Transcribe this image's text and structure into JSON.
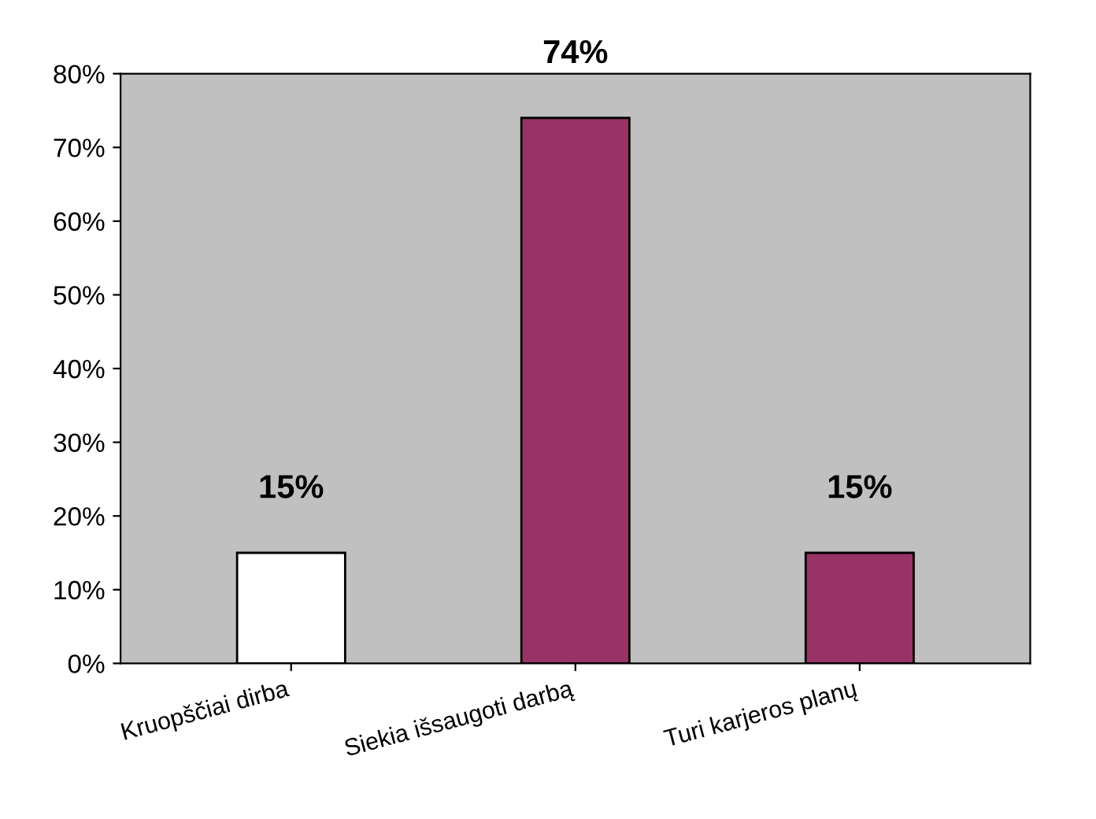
{
  "chart_data": {
    "type": "bar",
    "categories": [
      "Kruopščiai dirba",
      "Siekia išsaugoti darbą",
      "Turi karjeros planų"
    ],
    "values": [
      15,
      74,
      15
    ],
    "colors": [
      "#ffffff",
      "#993366",
      "#993366"
    ],
    "value_labels": [
      "15%",
      "74%",
      "15%"
    ],
    "ylim": [
      0,
      80
    ],
    "yticks": [
      {
        "value": 0,
        "label": "0%"
      },
      {
        "value": 10,
        "label": "10%"
      },
      {
        "value": 20,
        "label": "20%"
      },
      {
        "value": 30,
        "label": "30%"
      },
      {
        "value": 40,
        "label": "40%"
      },
      {
        "value": 50,
        "label": "50%"
      },
      {
        "value": 60,
        "label": "60%"
      },
      {
        "value": 70,
        "label": "70%"
      },
      {
        "value": 80,
        "label": "80%"
      }
    ],
    "grid": false,
    "legend": false
  }
}
